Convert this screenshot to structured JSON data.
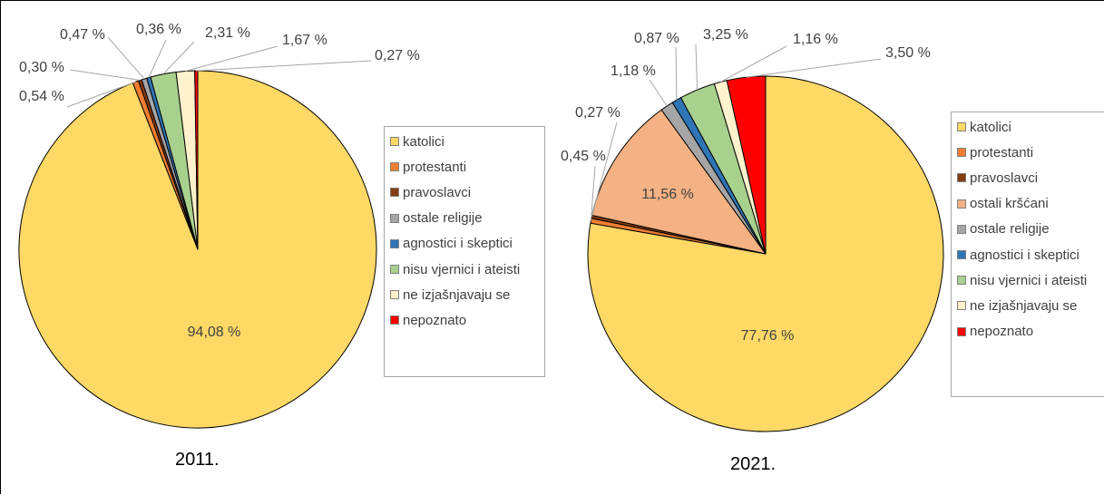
{
  "chart_data": [
    {
      "type": "pie",
      "title": "2011.",
      "slices": [
        {
          "name": "katolici",
          "value": 94.08,
          "label": "94,08 %",
          "color": "#FFD966"
        },
        {
          "name": "protestanti",
          "value": 0.54,
          "label": "0,54 %",
          "color": "#ED7D31"
        },
        {
          "name": "pravoslavci",
          "value": 0.3,
          "label": "0,30 %",
          "color": "#843C0C"
        },
        {
          "name": "ostale religije",
          "value": 0.47,
          "label": "0,47 %",
          "color": "#A5A5A5"
        },
        {
          "name": "agnostici i skeptici",
          "value": 0.36,
          "label": "0,36 %",
          "color": "#2E75B6"
        },
        {
          "name": "nisu vjernici i ateisti",
          "value": 2.31,
          "label": "2,31 %",
          "color": "#A9D18E"
        },
        {
          "name": "ne izjašnjavaju se",
          "value": 1.67,
          "label": "1,67 %",
          "color": "#FFF2CC"
        },
        {
          "name": "nepoznato",
          "value": 0.27,
          "label": "0,27 %",
          "color": "#FF0000"
        }
      ],
      "legend": [
        "katolici",
        "protestanti",
        "pravoslavci",
        "ostale religije",
        "agnostici i skeptici",
        "nisu vjernici i ateisti",
        "ne izjašnjavaju se",
        "nepoznato"
      ],
      "legend_placement": "right"
    },
    {
      "type": "pie",
      "title": "2021.",
      "slices": [
        {
          "name": "katolici",
          "value": 77.76,
          "label": "77,76 %",
          "color": "#FFD966"
        },
        {
          "name": "protestanti",
          "value": 0.45,
          "label": "0,45 %",
          "color": "#ED7D31"
        },
        {
          "name": "pravoslavci",
          "value": 0.27,
          "label": "0,27 %",
          "color": "#843C0C"
        },
        {
          "name": "ostali kršćani",
          "value": 11.56,
          "label": "11,56 %",
          "color": "#F4B183"
        },
        {
          "name": "ostale religije",
          "value": 1.18,
          "label": "1,18 %",
          "color": "#A5A5A5"
        },
        {
          "name": "agnostici i skeptici",
          "value": 0.87,
          "label": "0,87 %",
          "color": "#2E75B6"
        },
        {
          "name": "nisu vjernici i ateisti",
          "value": 3.25,
          "label": "3,25 %",
          "color": "#A9D18E"
        },
        {
          "name": "ne izjašnjavaju se",
          "value": 1.16,
          "label": "1,16 %",
          "color": "#FFF2CC"
        },
        {
          "name": "nepoznato",
          "value": 3.5,
          "label": "3,50 %",
          "color": "#FF0000"
        }
      ],
      "legend": [
        "katolici",
        "protestanti",
        "pravoslavci",
        "ostali kršćani",
        "ostale religije",
        "agnostici i skeptici",
        "nisu vjernici i ateisti",
        "ne izjašnjavaju se",
        "nepoznato"
      ],
      "legend_placement": "right"
    }
  ]
}
